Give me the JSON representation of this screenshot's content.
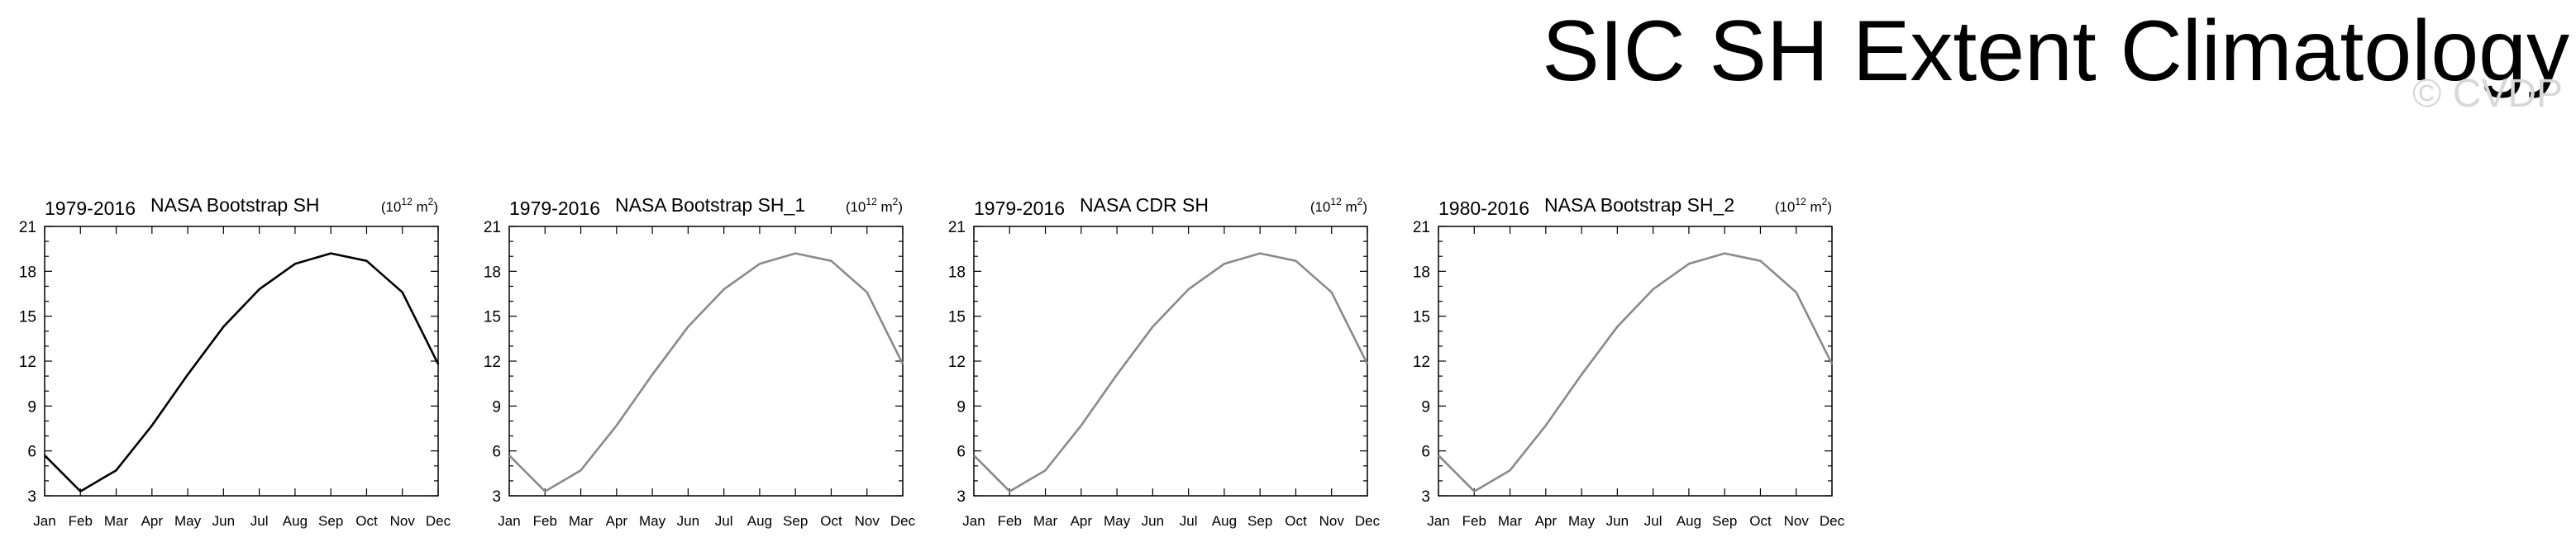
{
  "page": {
    "title": "SIC SH Extent Climatology",
    "watermark": "© CVDP"
  },
  "chart_data": [
    {
      "type": "line",
      "period": "1979-2016",
      "title": "NASA Bootstrap SH",
      "units": "(10^12 m^2)",
      "categories": [
        "Jan",
        "Feb",
        "Mar",
        "Apr",
        "May",
        "Jun",
        "Jul",
        "Aug",
        "Sep",
        "Oct",
        "Nov",
        "Dec"
      ],
      "values": [
        5.7,
        3.3,
        4.7,
        7.7,
        11.1,
        14.3,
        16.8,
        18.5,
        19.2,
        18.7,
        16.6,
        11.8
      ],
      "ylim": [
        3,
        21
      ],
      "yticks": [
        "3",
        "6",
        "9",
        "12",
        "15",
        "18",
        "21"
      ],
      "line_color": "#000000"
    },
    {
      "type": "line",
      "period": "1979-2016",
      "title": "NASA Bootstrap SH_1",
      "units": "(10^12 m^2)",
      "categories": [
        "Jan",
        "Feb",
        "Mar",
        "Apr",
        "May",
        "Jun",
        "Jul",
        "Aug",
        "Sep",
        "Oct",
        "Nov",
        "Dec"
      ],
      "values": [
        5.7,
        3.3,
        4.7,
        7.7,
        11.1,
        14.3,
        16.8,
        18.5,
        19.2,
        18.7,
        16.6,
        11.8
      ],
      "ylim": [
        3,
        21
      ],
      "yticks": [
        "3",
        "6",
        "9",
        "12",
        "15",
        "18",
        "21"
      ],
      "line_color": "#8a8a8a"
    },
    {
      "type": "line",
      "period": "1979-2016",
      "title": "NASA CDR SH",
      "units": "(10^12 m^2)",
      "categories": [
        "Jan",
        "Feb",
        "Mar",
        "Apr",
        "May",
        "Jun",
        "Jul",
        "Aug",
        "Sep",
        "Oct",
        "Nov",
        "Dec"
      ],
      "values": [
        5.7,
        3.3,
        4.7,
        7.7,
        11.1,
        14.3,
        16.8,
        18.5,
        19.2,
        18.7,
        16.6,
        11.8
      ],
      "ylim": [
        3,
        21
      ],
      "yticks": [
        "3",
        "6",
        "9",
        "12",
        "15",
        "18",
        "21"
      ],
      "line_color": "#8a8a8a"
    },
    {
      "type": "line",
      "period": "1980-2016",
      "title": "NASA Bootstrap SH_2",
      "units": "(10^12 m^2)",
      "categories": [
        "Jan",
        "Feb",
        "Mar",
        "Apr",
        "May",
        "Jun",
        "Jul",
        "Aug",
        "Sep",
        "Oct",
        "Nov",
        "Dec"
      ],
      "values": [
        5.7,
        3.3,
        4.7,
        7.7,
        11.1,
        14.3,
        16.8,
        18.5,
        19.2,
        18.7,
        16.6,
        11.8
      ],
      "ylim": [
        3,
        21
      ],
      "yticks": [
        "3",
        "6",
        "9",
        "12",
        "15",
        "18",
        "21"
      ],
      "line_color": "#8a8a8a"
    }
  ]
}
